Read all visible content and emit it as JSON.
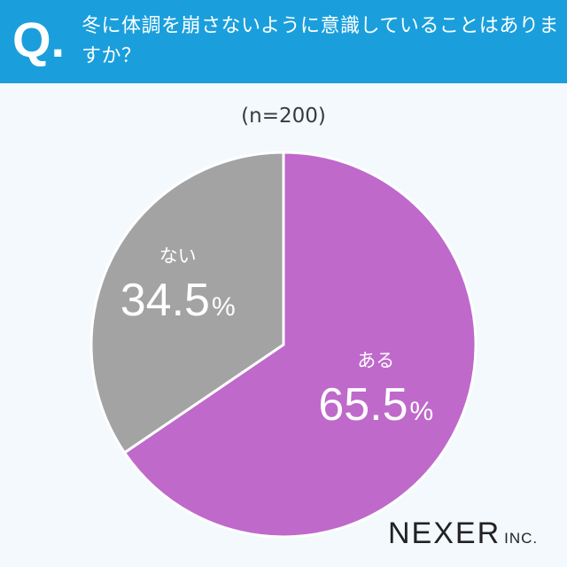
{
  "header": {
    "q_mark": "Q.",
    "question": "冬に体調を崩さないように意識していることはありますか？"
  },
  "sample_label": "(n=200)",
  "brand": {
    "name": "NEXER",
    "suffix": "INC."
  },
  "colors": {
    "header_bg": "#1a9fdc",
    "page_bg": "#f3f9fd",
    "slice_yes": "#bf69cb",
    "slice_no": "#a3a3a3",
    "text_on_slice": "#ffffff"
  },
  "chart_data": {
    "type": "pie",
    "title": "冬に体調を崩さないように意識していることはありますか？",
    "n": 200,
    "start": "12 o'clock",
    "direction": "clockwise",
    "slices": [
      {
        "label": "ある",
        "value": 65.5,
        "display": "65.5",
        "unit": "%",
        "color": "#bf69cb"
      },
      {
        "label": "ない",
        "value": 34.5,
        "display": "34.5",
        "unit": "%",
        "color": "#a3a3a3"
      }
    ]
  }
}
